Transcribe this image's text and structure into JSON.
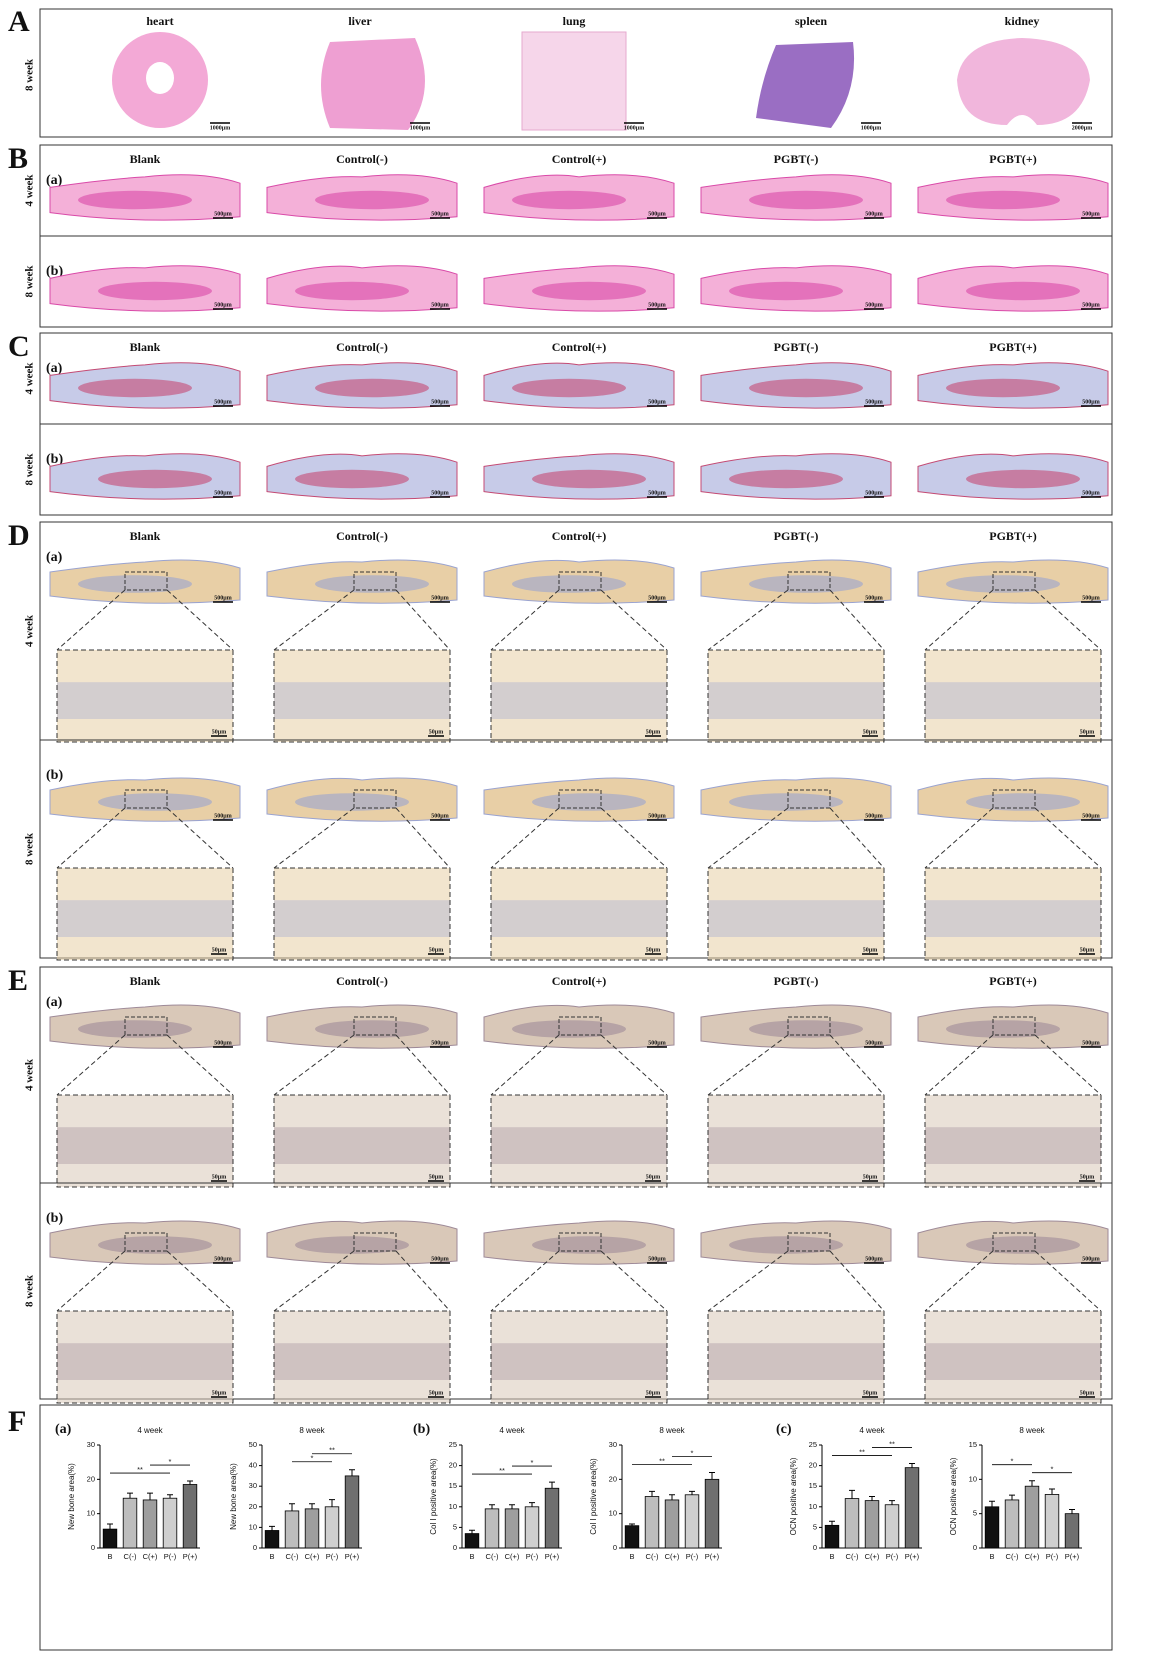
{
  "panel_A": {
    "label": "A",
    "row_label": "8 week",
    "organs": [
      "heart",
      "liver",
      "lung",
      "spleen",
      "kidney"
    ],
    "scale_bars": [
      "1000μm",
      "1000μm",
      "1000μm",
      "1000μm",
      "2000μm"
    ]
  },
  "panel_B": {
    "label": "B",
    "groups": [
      "Blank",
      "Control(-)",
      "Control(+)",
      "PGBT(-)",
      "PGBT(+)"
    ],
    "rows": [
      {
        "tag": "(a)",
        "week": "4 week",
        "scale_bars": [
          "500μm",
          "500μm",
          "500μm",
          "500μm",
          "500μm"
        ]
      },
      {
        "tag": "(b)",
        "week": "8 week",
        "scale_bars": [
          "500μm",
          "500μm",
          "500μm",
          "500μm",
          "500μm"
        ]
      }
    ]
  },
  "panel_C": {
    "label": "C",
    "groups": [
      "Blank",
      "Control(-)",
      "Control(+)",
      "PGBT(-)",
      "PGBT(+)"
    ],
    "rows": [
      {
        "tag": "(a)",
        "week": "4 week",
        "scale_bars": [
          "500μm",
          "500μm",
          "500μm",
          "500μm",
          "500μm"
        ]
      },
      {
        "tag": "(b)",
        "week": "8 week",
        "scale_bars": [
          "500μm",
          "500μm",
          "500μm",
          "500μm",
          "500μm"
        ]
      }
    ]
  },
  "panel_D": {
    "label": "D",
    "groups": [
      "Blank",
      "Control(-)",
      "Control(+)",
      "PGBT(-)",
      "PGBT(+)"
    ],
    "rows": [
      {
        "tag": "(a)",
        "week": "4 week",
        "scale_bars": [
          "500μm",
          "500μm",
          "500μm",
          "500μm",
          "500μm"
        ],
        "zoom_scale_bars": [
          "50μm",
          "50μm",
          "50μm",
          "50μm",
          "50μm"
        ]
      },
      {
        "tag": "(b)",
        "week": "8 week",
        "scale_bars": [
          "500μm",
          "500μm",
          "500μm",
          "500μm",
          "500μm"
        ],
        "zoom_scale_bars": [
          "50μm",
          "50μm",
          "50μm",
          "50μm",
          "50μm"
        ]
      }
    ]
  },
  "panel_E": {
    "label": "E",
    "groups": [
      "Blank",
      "Control(-)",
      "Control(+)",
      "PGBT(-)",
      "PGBT(+)"
    ],
    "rows": [
      {
        "tag": "(a)",
        "week": "4 week",
        "scale_bars": [
          "500μm",
          "500μm",
          "500μm",
          "500μm",
          "500μm"
        ],
        "zoom_scale_bars": [
          "50μm",
          "50μm",
          "50μm",
          "50μm",
          "50μm"
        ]
      },
      {
        "tag": "(b)",
        "week": "8 week",
        "scale_bars": [
          "500μm",
          "500μm",
          "500μm",
          "500μm",
          "500μm"
        ],
        "zoom_scale_bars": [
          "50μm",
          "50μm",
          "50μm",
          "50μm",
          "50μm"
        ]
      }
    ]
  },
  "panel_F": {
    "label": "F",
    "tags": [
      "(a)",
      "(b)",
      "(c)"
    ]
  },
  "chart_data": [
    {
      "type": "bar",
      "title": "4 week",
      "y_label": "New bone area(%)",
      "categories": [
        "B",
        "C(-)",
        "C(+)",
        "P(-)",
        "P(+)"
      ],
      "values": [
        5.5,
        14.5,
        14,
        14.5,
        18.5
      ],
      "errors": [
        1.5,
        1.5,
        2,
        1,
        1
      ],
      "colors": [
        "#111111",
        "#bdbdbd",
        "#9e9e9e",
        "#cfcfcf",
        "#6f6f6f"
      ],
      "ylim": [
        0,
        30
      ],
      "yticks": [
        0,
        10,
        20,
        30
      ],
      "significance": [
        {
          "groups": [
            "C(+)",
            "P(+)"
          ],
          "label": "*"
        },
        {
          "groups": [
            "B",
            "P(-)"
          ],
          "label": "**"
        }
      ]
    },
    {
      "type": "bar",
      "title": "8 week",
      "y_label": "New bone area(%)",
      "categories": [
        "B",
        "C(-)",
        "C(+)",
        "P(-)",
        "P(+)"
      ],
      "values": [
        8.5,
        18,
        19,
        20,
        35
      ],
      "errors": [
        2,
        3.5,
        2.5,
        3.5,
        3
      ],
      "colors": [
        "#111111",
        "#bdbdbd",
        "#9e9e9e",
        "#cfcfcf",
        "#6f6f6f"
      ],
      "ylim": [
        0,
        50
      ],
      "yticks": [
        0,
        10,
        20,
        30,
        40,
        50
      ],
      "significance": [
        {
          "groups": [
            "C(+)",
            "P(+)"
          ],
          "label": "**"
        },
        {
          "groups": [
            "C(-)",
            "P(-)"
          ],
          "label": "*"
        }
      ]
    },
    {
      "type": "bar",
      "title": "4 week",
      "y_label": "Col I positive area(%)",
      "categories": [
        "B",
        "C(-)",
        "C(+)",
        "P(-)",
        "P(+)"
      ],
      "values": [
        3.5,
        9.5,
        9.5,
        10,
        14.5
      ],
      "errors": [
        0.8,
        1,
        1,
        1,
        1.5
      ],
      "colors": [
        "#111111",
        "#bdbdbd",
        "#9e9e9e",
        "#cfcfcf",
        "#6f6f6f"
      ],
      "ylim": [
        0,
        25
      ],
      "yticks": [
        0,
        5,
        10,
        15,
        20,
        25
      ],
      "significance": [
        {
          "groups": [
            "C(+)",
            "P(+)"
          ],
          "label": "*"
        },
        {
          "groups": [
            "B",
            "P(-)"
          ],
          "label": "**"
        }
      ]
    },
    {
      "type": "bar",
      "title": "8 week",
      "y_label": "Col I positive area(%)",
      "categories": [
        "B",
        "C(-)",
        "C(+)",
        "P(-)",
        "P(+)"
      ],
      "values": [
        6.5,
        15,
        14,
        15.5,
        20
      ],
      "errors": [
        0.5,
        1.5,
        1.5,
        1,
        2
      ],
      "colors": [
        "#111111",
        "#bdbdbd",
        "#9e9e9e",
        "#cfcfcf",
        "#6f6f6f"
      ],
      "ylim": [
        0,
        30
      ],
      "yticks": [
        0,
        10,
        20,
        30
      ],
      "significance": [
        {
          "groups": [
            "C(+)",
            "P(+)"
          ],
          "label": "*"
        },
        {
          "groups": [
            "B",
            "P(-)"
          ],
          "label": "**"
        }
      ]
    },
    {
      "type": "bar",
      "title": "4 week",
      "y_label": "OCN positive area(%)",
      "categories": [
        "B",
        "C(-)",
        "C(+)",
        "P(-)",
        "P(+)"
      ],
      "values": [
        5.5,
        12,
        11.5,
        10.5,
        19.5
      ],
      "errors": [
        1,
        2,
        1,
        1,
        1
      ],
      "colors": [
        "#111111",
        "#bdbdbd",
        "#9e9e9e",
        "#cfcfcf",
        "#6f6f6f"
      ],
      "ylim": [
        0,
        25
      ],
      "yticks": [
        0,
        5,
        10,
        15,
        20,
        25
      ],
      "significance": [
        {
          "groups": [
            "C(+)",
            "P(+)"
          ],
          "label": "**"
        },
        {
          "groups": [
            "B",
            "P(-)"
          ],
          "label": "**"
        }
      ]
    },
    {
      "type": "bar",
      "title": "8 week",
      "y_label": "OCN positive area(%)",
      "categories": [
        "B",
        "C(-)",
        "C(+)",
        "P(-)",
        "P(+)"
      ],
      "values": [
        6,
        7,
        9,
        7.8,
        5
      ],
      "errors": [
        0.8,
        0.7,
        0.8,
        0.8,
        0.6
      ],
      "colors": [
        "#111111",
        "#bdbdbd",
        "#9e9e9e",
        "#cfcfcf",
        "#6f6f6f"
      ],
      "ylim": [
        0,
        15
      ],
      "yticks": [
        0,
        5,
        10,
        15
      ],
      "significance": [
        {
          "groups": [
            "B",
            "C(+)"
          ],
          "label": "*"
        },
        {
          "groups": [
            "C(+)",
            "P(+)"
          ],
          "label": "*"
        }
      ]
    }
  ]
}
